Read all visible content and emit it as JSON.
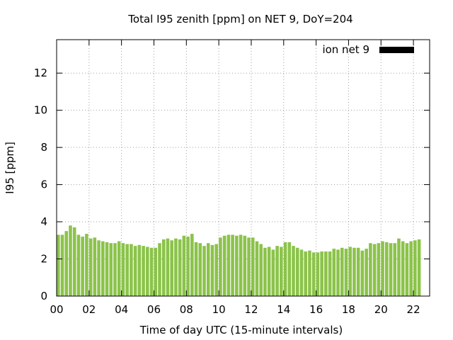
{
  "chart_data": {
    "type": "bar",
    "title": "Total I95 zenith [ppm] on NET 9, DoY=204",
    "xlabel": "Time of day UTC (15-minute intervals)",
    "ylabel": "I95 [ppm]",
    "legend": {
      "label": "ion net 9",
      "position": "top-right",
      "color": "#000000"
    },
    "bar_color": "#8bc34a",
    "grid": true,
    "xlim": [
      0,
      23
    ],
    "ylim": [
      0,
      13.8
    ],
    "xticks": [
      "00",
      "02",
      "04",
      "06",
      "08",
      "10",
      "12",
      "14",
      "16",
      "18",
      "20",
      "22"
    ],
    "yticks": [
      "0",
      "2",
      "4",
      "6",
      "8",
      "10",
      "12"
    ],
    "series": [
      {
        "name": "ion net 9",
        "values": [
          3.3,
          3.3,
          3.5,
          3.8,
          3.7,
          3.3,
          3.2,
          3.35,
          3.1,
          3.15,
          3.0,
          2.95,
          2.9,
          2.85,
          2.85,
          2.95,
          2.85,
          2.8,
          2.8,
          2.7,
          2.75,
          2.7,
          2.65,
          2.6,
          2.6,
          2.85,
          3.05,
          3.1,
          3.0,
          3.1,
          3.05,
          3.25,
          3.2,
          3.35,
          2.9,
          2.85,
          2.7,
          2.85,
          2.75,
          2.8,
          3.15,
          3.25,
          3.3,
          3.3,
          3.25,
          3.3,
          3.25,
          3.15,
          3.15,
          2.95,
          2.8,
          2.6,
          2.65,
          2.5,
          2.7,
          2.65,
          2.9,
          2.9,
          2.7,
          2.6,
          2.5,
          2.4,
          2.45,
          2.35,
          2.35,
          2.4,
          2.4,
          2.4,
          2.55,
          2.5,
          2.6,
          2.55,
          2.65,
          2.6,
          2.6,
          2.45,
          2.55,
          2.85,
          2.8,
          2.85,
          2.95,
          2.9,
          2.85,
          2.85,
          3.1,
          2.95,
          2.85,
          2.95,
          3.0,
          3.05
        ]
      }
    ]
  }
}
